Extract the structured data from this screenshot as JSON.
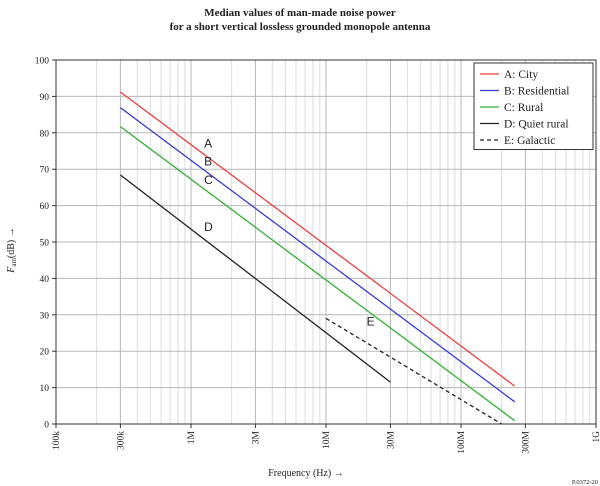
{
  "chart_data": {
    "type": "line",
    "title": "Median values of man-made noise power",
    "subtitle": "for a short vertical lossless grounded monopole antenna",
    "xlabel": "Frequency (Hz) →",
    "ylabel_main": "F",
    "ylabel_sub": "am",
    "ylabel_rest": "(dB) →",
    "x_scale": "log",
    "xlim": [
      100000,
      1000000000
    ],
    "ylim": [
      0,
      100
    ],
    "x_ticks": [
      {
        "value": 100000,
        "label": "100k"
      },
      {
        "value": 300000,
        "label": "300k"
      },
      {
        "value": 1000000,
        "label": "1M"
      },
      {
        "value": 3000000,
        "label": "3M"
      },
      {
        "value": 10000000,
        "label": "10M"
      },
      {
        "value": 30000000,
        "label": "30M"
      },
      {
        "value": 100000000,
        "label": "100M"
      },
      {
        "value": 300000000,
        "label": "300M"
      },
      {
        "value": 1000000000,
        "label": "1G"
      }
    ],
    "y_ticks": [
      0,
      10,
      20,
      30,
      40,
      50,
      60,
      70,
      80,
      90,
      100
    ],
    "grid": true,
    "legend_position": "top-right",
    "series": [
      {
        "name": "A: City",
        "label": "A",
        "color": "#e8403e",
        "dash": false,
        "x": [
          300000,
          250000000
        ],
        "y": [
          91.2,
          10.4
        ],
        "label_x": 1250000,
        "label_y": 76
      },
      {
        "name": "B: Residential",
        "label": "B",
        "color": "#3b3bd6",
        "dash": false,
        "x": [
          300000,
          250000000
        ],
        "y": [
          86.9,
          6.1
        ],
        "label_x": 1250000,
        "label_y": 71
      },
      {
        "name": "C: Rural",
        "label": "C",
        "color": "#33b033",
        "dash": false,
        "x": [
          300000,
          250000000
        ],
        "y": [
          81.7,
          0.9
        ],
        "label_x": 1250000,
        "label_y": 66
      },
      {
        "name": "D: Quiet rural",
        "label": "D",
        "color": "#222222",
        "dash": false,
        "x": [
          300000,
          30000000
        ],
        "y": [
          68.4,
          11.5
        ],
        "label_x": 1250000,
        "label_y": 53
      },
      {
        "name": "E: Galactic",
        "label": "E",
        "color": "#222222",
        "dash": true,
        "x": [
          10000000,
          200000000
        ],
        "y": [
          29.0,
          0
        ],
        "label_x": 20000000,
        "label_y": 27
      }
    ],
    "footer": "P.0372-20"
  }
}
